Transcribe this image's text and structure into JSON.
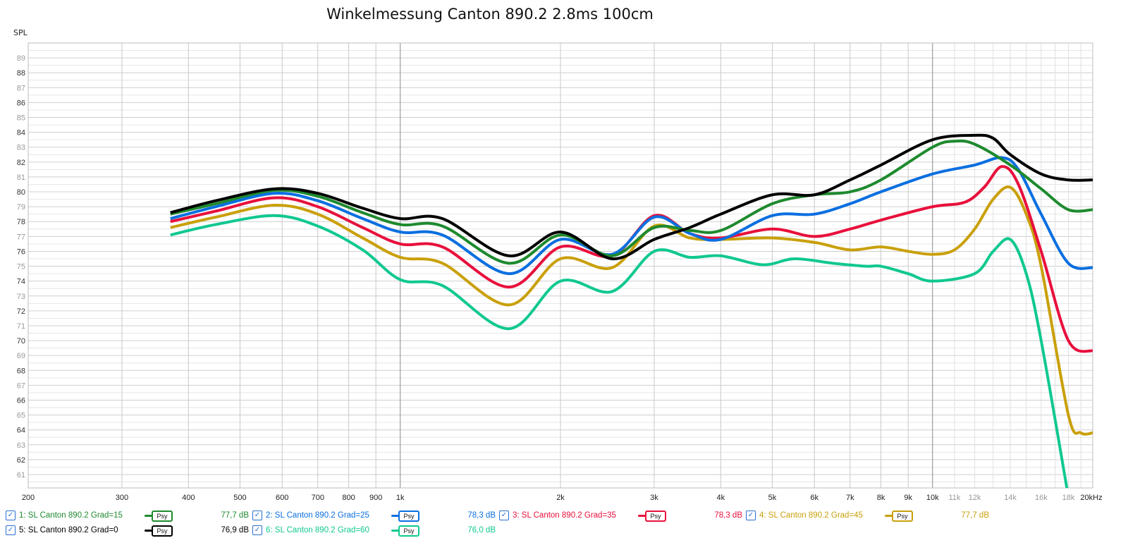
{
  "chart_data": {
    "type": "line",
    "title": "Winkelmessung Canton 890.2 2.8ms 100cm",
    "ylabel": "SPL",
    "xlabel": "",
    "xscale": "log",
    "xlim": [
      200,
      20000
    ],
    "ylim": [
      60.1,
      90.0
    ],
    "grid": true,
    "legend_placement": "bottom",
    "yticks": [
      61,
      62,
      63,
      64,
      65,
      66,
      67,
      68,
      69,
      70,
      71,
      72,
      73,
      74,
      75,
      76,
      77,
      78,
      79,
      80,
      81,
      82,
      83,
      84,
      85,
      86,
      87,
      88,
      89
    ],
    "xticks": [
      {
        "v": 200,
        "l": "200"
      },
      {
        "v": 300,
        "l": "300"
      },
      {
        "v": 400,
        "l": "400"
      },
      {
        "v": 500,
        "l": "500"
      },
      {
        "v": 600,
        "l": "600"
      },
      {
        "v": 700,
        "l": "700"
      },
      {
        "v": 800,
        "l": "800"
      },
      {
        "v": 900,
        "l": "900"
      },
      {
        "v": 1000,
        "l": "1k"
      },
      {
        "v": 2000,
        "l": "2k"
      },
      {
        "v": 3000,
        "l": "3k"
      },
      {
        "v": 4000,
        "l": "4k"
      },
      {
        "v": 5000,
        "l": "5k"
      },
      {
        "v": 6000,
        "l": "6k"
      },
      {
        "v": 7000,
        "l": "7k"
      },
      {
        "v": 8000,
        "l": "8k"
      },
      {
        "v": 9000,
        "l": "9k"
      },
      {
        "v": 10000,
        "l": "10k"
      },
      {
        "v": 11000,
        "l": "11k"
      },
      {
        "v": 12000,
        "l": "12k"
      },
      {
        "v": 14000,
        "l": "14k"
      },
      {
        "v": 16000,
        "l": "16k"
      },
      {
        "v": 18000,
        "l": "18k"
      },
      {
        "v": 20000,
        "l": "20kHz"
      }
    ],
    "series": [
      {
        "name": "1: SL Canton 890.2 Grad=15",
        "color": "#1e8a2e",
        "value_label": "77,7 dB",
        "psy": "Psy",
        "x": [
          370,
          450,
          580,
          700,
          850,
          1000,
          1200,
          1600,
          2000,
          2500,
          3000,
          3500,
          4000,
          5000,
          6000,
          7000,
          8000,
          10000,
          11000,
          12000,
          14000,
          16000,
          18000,
          20000
        ],
        "y": [
          78.5,
          79.2,
          80.1,
          79.7,
          78.6,
          77.8,
          77.7,
          75.2,
          77.1,
          75.7,
          77.6,
          77.4,
          77.4,
          79.2,
          79.8,
          80.0,
          80.8,
          83.0,
          83.4,
          83.2,
          81.8,
          80.2,
          78.8,
          78.8
        ]
      },
      {
        "name": "2: SL Canton 890.2 Grad=25",
        "color": "#0a6fe0",
        "value_label": "78,3 dB",
        "psy": "Psy",
        "x": [
          370,
          450,
          580,
          700,
          850,
          1000,
          1200,
          1600,
          2000,
          2500,
          3000,
          3500,
          4000,
          5000,
          6000,
          7000,
          8000,
          10000,
          12000,
          13500,
          14500,
          16000,
          18000,
          20000
        ],
        "y": [
          78.2,
          79.0,
          79.9,
          79.4,
          78.2,
          77.3,
          77.1,
          74.5,
          76.8,
          75.8,
          78.3,
          77.2,
          76.8,
          78.4,
          78.5,
          79.2,
          80.0,
          81.2,
          81.8,
          82.3,
          81.5,
          78.5,
          75.2,
          74.9
        ]
      },
      {
        "name": "3: SL Canton 890.2 Grad=35",
        "color": "#e8103c",
        "value_label": "78,3 dB",
        "psy": "Psy",
        "x": [
          370,
          450,
          580,
          700,
          850,
          1000,
          1200,
          1600,
          2000,
          2500,
          3000,
          3500,
          4000,
          5000,
          6000,
          7000,
          8000,
          10000,
          11500,
          12500,
          13500,
          14500,
          16000,
          18000,
          20000
        ],
        "y": [
          78.0,
          78.7,
          79.6,
          79.0,
          77.6,
          76.5,
          76.3,
          73.6,
          76.3,
          75.7,
          78.4,
          77.2,
          76.9,
          77.5,
          77.0,
          77.5,
          78.1,
          79.0,
          79.3,
          80.3,
          81.7,
          80.5,
          76.0,
          70.0,
          69.3
        ]
      },
      {
        "name": "4: SL Canton 890.2 Grad=45",
        "color": "#c9a00a",
        "value_label": "77,7 dB",
        "psy": "Psy",
        "x": [
          370,
          450,
          580,
          700,
          850,
          1000,
          1200,
          1600,
          2000,
          2500,
          3000,
          3500,
          4000,
          5000,
          6000,
          7000,
          8000,
          9000,
          10000,
          11000,
          12000,
          13000,
          14000,
          15000,
          16000,
          18000,
          19000,
          20000
        ],
        "y": [
          77.6,
          78.3,
          79.1,
          78.5,
          76.9,
          75.6,
          75.2,
          72.4,
          75.5,
          74.9,
          77.7,
          76.9,
          76.8,
          76.9,
          76.6,
          76.1,
          76.3,
          76.0,
          75.8,
          76.1,
          77.5,
          79.5,
          80.3,
          78.5,
          75.0,
          65.0,
          63.8,
          63.8
        ]
      },
      {
        "name": "5: SL Canton 890.2 Grad=0",
        "color": "#000000",
        "value_label": "76,9 dB",
        "psy": "Psy",
        "x": [
          370,
          450,
          580,
          700,
          850,
          1000,
          1200,
          1600,
          2000,
          2500,
          3000,
          3500,
          4000,
          5000,
          6000,
          7000,
          8000,
          10000,
          12000,
          13000,
          14000,
          16000,
          18000,
          20000
        ],
        "y": [
          78.6,
          79.4,
          80.2,
          79.9,
          78.9,
          78.2,
          78.2,
          75.7,
          77.3,
          75.5,
          76.8,
          77.6,
          78.5,
          79.8,
          79.8,
          80.8,
          81.8,
          83.5,
          83.8,
          83.6,
          82.5,
          81.2,
          80.8,
          80.8
        ]
      },
      {
        "name": "6: SL Canton 890.2 Grad=60",
        "color": "#10c890",
        "value_label": "76,0 dB",
        "psy": "Psy",
        "x": [
          370,
          450,
          580,
          700,
          850,
          1000,
          1200,
          1600,
          2000,
          2500,
          3000,
          3500,
          4000,
          4800,
          5500,
          6500,
          7500,
          8000,
          9000,
          10000,
          12000,
          13000,
          14000,
          15000,
          16000,
          18000
        ],
        "y": [
          77.1,
          77.8,
          78.4,
          77.7,
          76.1,
          74.1,
          73.7,
          70.8,
          74.0,
          73.3,
          76.0,
          75.6,
          75.7,
          75.1,
          75.5,
          75.2,
          75.0,
          75.0,
          74.5,
          74.0,
          74.5,
          76.0,
          76.8,
          74.5,
          70.0,
          59.5
        ]
      }
    ]
  },
  "legend_checked": "✓"
}
